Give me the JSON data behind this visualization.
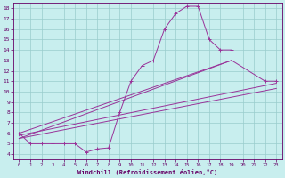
{
  "xlabel": "Windchill (Refroidissement éolien,°C)",
  "bg_color": "#c8eeee",
  "line_color": "#993399",
  "grid_color": "#99cccc",
  "axis_color": "#660066",
  "text_color": "#660066",
  "xlim": [
    -0.5,
    23.5
  ],
  "ylim": [
    3.5,
    18.5
  ],
  "xticks": [
    0,
    1,
    2,
    3,
    4,
    5,
    6,
    7,
    8,
    9,
    10,
    11,
    12,
    13,
    14,
    15,
    16,
    17,
    18,
    19,
    20,
    21,
    22,
    23
  ],
  "yticks": [
    4,
    5,
    6,
    7,
    8,
    9,
    10,
    11,
    12,
    13,
    14,
    15,
    16,
    17,
    18
  ],
  "line1_x": [
    0,
    1,
    2,
    3,
    4,
    5,
    6,
    7,
    8,
    9,
    10,
    11,
    12,
    13,
    14,
    15,
    16,
    17,
    18,
    19
  ],
  "line1_y": [
    6,
    5,
    5,
    5,
    5,
    5,
    4.2,
    4.5,
    4.6,
    8,
    11,
    12.5,
    13,
    16,
    17.5,
    18.2,
    18.2,
    15,
    14,
    14
  ],
  "line2_x": [
    0,
    19,
    22,
    23
  ],
  "line2_y": [
    6,
    13,
    11,
    11
  ],
  "line3_x": [
    0,
    23
  ],
  "line3_y": [
    5.8,
    10.8
  ],
  "line4_x": [
    0,
    23
  ],
  "line4_y": [
    5.5,
    10.3
  ],
  "line5_x": [
    0,
    19
  ],
  "line5_y": [
    5.5,
    13
  ]
}
